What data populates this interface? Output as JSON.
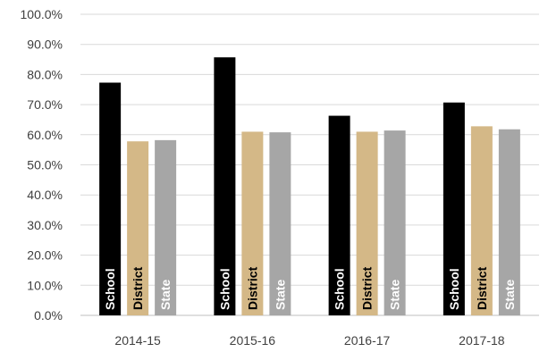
{
  "chart_data": {
    "type": "bar",
    "title": "",
    "xlabel": "",
    "ylabel": "",
    "categories": [
      "2014-15",
      "2015-16",
      "2016-17",
      "2017-18"
    ],
    "series": [
      {
        "name": "School",
        "values": [
          77.3,
          85.7,
          66.3,
          70.7
        ],
        "color": "#000000",
        "label_color": "#ffffff"
      },
      {
        "name": "District",
        "values": [
          57.8,
          61.0,
          61.0,
          62.8
        ],
        "color": "#d4b887",
        "label_color": "#000000"
      },
      {
        "name": "State",
        "values": [
          58.2,
          60.8,
          61.4,
          61.8
        ],
        "color": "#a6a6a6",
        "label_color": "#ffffff"
      }
    ],
    "ylim": [
      0,
      100
    ],
    "yticks": [
      "0.0%",
      "10.0%",
      "20.0%",
      "30.0%",
      "40.0%",
      "50.0%",
      "60.0%",
      "70.0%",
      "80.0%",
      "90.0%",
      "100.0%"
    ],
    "grid": true,
    "legend": "none"
  }
}
